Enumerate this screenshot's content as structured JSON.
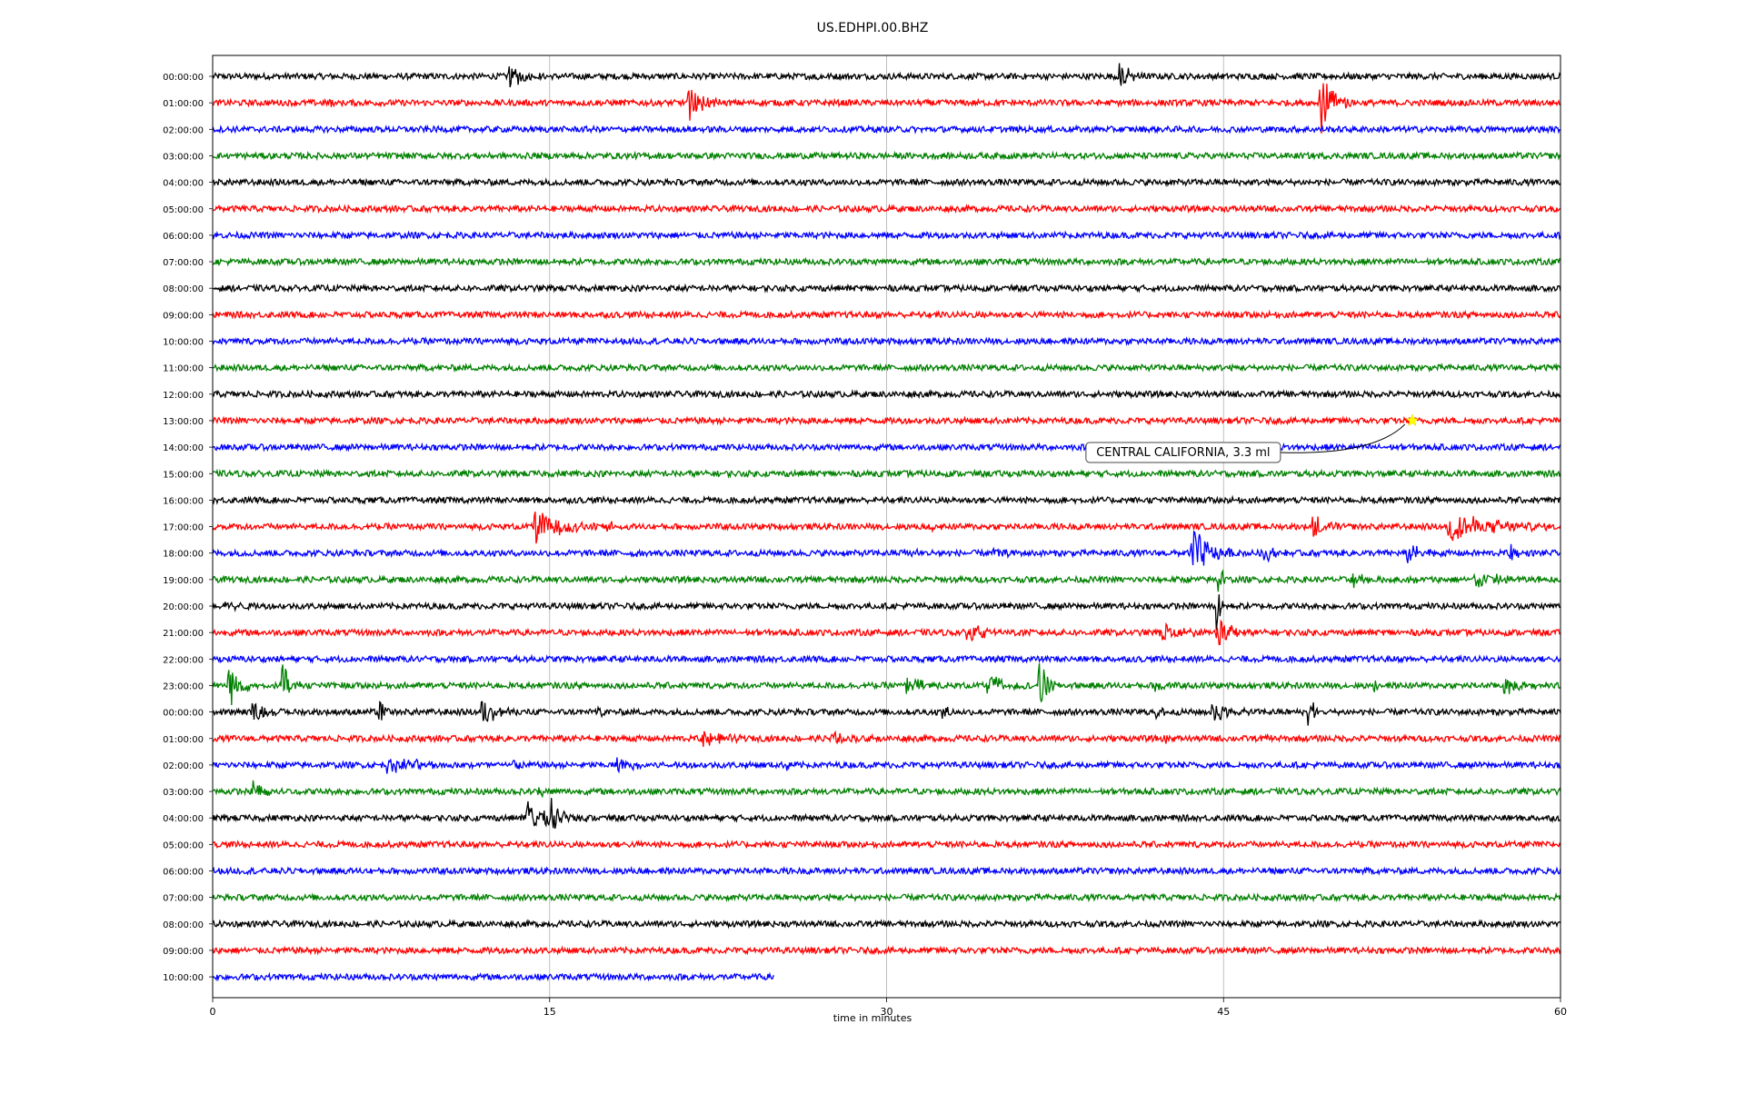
{
  "chart_data": {
    "type": "line",
    "title": "US.EDHPI.00.BHZ",
    "xlabel": "time in minutes",
    "ylabel": "",
    "xlim": [
      0,
      60
    ],
    "x_ticks": [
      0,
      15,
      30,
      45,
      60
    ],
    "x_tick_labels": [
      "0",
      "15",
      "30",
      "45",
      "60"
    ],
    "grid": {
      "x": true,
      "y": false
    },
    "colors": [
      "#000000",
      "#ff0000",
      "#0000ff",
      "#008000"
    ],
    "row_labels": [
      "00:00:00",
      "01:00:00",
      "02:00:00",
      "03:00:00",
      "04:00:00",
      "05:00:00",
      "06:00:00",
      "07:00:00",
      "08:00:00",
      "09:00:00",
      "10:00:00",
      "11:00:00",
      "12:00:00",
      "13:00:00",
      "14:00:00",
      "15:00:00",
      "16:00:00",
      "17:00:00",
      "18:00:00",
      "19:00:00",
      "20:00:00",
      "21:00:00",
      "22:00:00",
      "23:00:00",
      "00:00:00",
      "01:00:00",
      "02:00:00",
      "03:00:00",
      "04:00:00",
      "05:00:00",
      "06:00:00",
      "07:00:00",
      "08:00:00",
      "09:00:00",
      "10:00:00"
    ],
    "last_row_end_minute": 25,
    "events": [
      {
        "row": 0,
        "t": 13.2,
        "amp": 0.45,
        "dur": 1.5
      },
      {
        "row": 0,
        "t": 26.9,
        "amp": 0.25,
        "dur": 0.3
      },
      {
        "row": 0,
        "t": 40.4,
        "amp": 0.5,
        "dur": 1.2
      },
      {
        "row": 1,
        "t": 5.2,
        "amp": 0.2,
        "dur": 0.4
      },
      {
        "row": 1,
        "t": 21.2,
        "amp": 0.6,
        "dur": 1.5
      },
      {
        "row": 1,
        "t": 49.3,
        "amp": 1.3,
        "dur": 1.3
      },
      {
        "row": 1,
        "t": 50.4,
        "amp": 0.35,
        "dur": 0.4
      },
      {
        "row": 17,
        "t": 14.3,
        "amp": 0.7,
        "dur": 2.8
      },
      {
        "row": 17,
        "t": 17.5,
        "amp": 0.3,
        "dur": 0.8
      },
      {
        "row": 17,
        "t": 32.0,
        "amp": 0.25,
        "dur": 0.5
      },
      {
        "row": 17,
        "t": 49.0,
        "amp": 0.5,
        "dur": 1.2
      },
      {
        "row": 17,
        "t": 55.0,
        "amp": 0.6,
        "dur": 5.0
      },
      {
        "row": 18,
        "t": 18.7,
        "amp": 0.2,
        "dur": 0.5
      },
      {
        "row": 18,
        "t": 30.7,
        "amp": 0.25,
        "dur": 2.0
      },
      {
        "row": 18,
        "t": 34.8,
        "amp": 0.2,
        "dur": 1.0
      },
      {
        "row": 18,
        "t": 43.6,
        "amp": 1.05,
        "dur": 1.8
      },
      {
        "row": 18,
        "t": 46.8,
        "amp": 0.4,
        "dur": 1.0
      },
      {
        "row": 18,
        "t": 53.2,
        "amp": 0.4,
        "dur": 1.5
      },
      {
        "row": 18,
        "t": 57.8,
        "amp": 0.35,
        "dur": 0.6
      },
      {
        "row": 19,
        "t": 44.8,
        "amp": 1.2,
        "dur": 0.3
      },
      {
        "row": 19,
        "t": 50.7,
        "amp": 0.4,
        "dur": 1.0
      },
      {
        "row": 19,
        "t": 53.0,
        "amp": 0.2,
        "dur": 1.2
      },
      {
        "row": 19,
        "t": 56.2,
        "amp": 0.3,
        "dur": 3.5
      },
      {
        "row": 20,
        "t": 0.6,
        "amp": 0.4,
        "dur": 1.0
      },
      {
        "row": 20,
        "t": 44.7,
        "amp": 1.2,
        "dur": 0.3
      },
      {
        "row": 21,
        "t": 33.6,
        "amp": 0.3,
        "dur": 2.7
      },
      {
        "row": 21,
        "t": 42.2,
        "amp": 0.4,
        "dur": 2.2
      },
      {
        "row": 21,
        "t": 44.7,
        "amp": 0.7,
        "dur": 1.4
      },
      {
        "row": 23,
        "t": 0.7,
        "amp": 0.9,
        "dur": 1.2
      },
      {
        "row": 23,
        "t": 3.1,
        "amp": 0.8,
        "dur": 1.0
      },
      {
        "row": 23,
        "t": 5.4,
        "amp": 0.25,
        "dur": 0.4
      },
      {
        "row": 23,
        "t": 30.9,
        "amp": 0.3,
        "dur": 2.0
      },
      {
        "row": 23,
        "t": 34.5,
        "amp": 0.5,
        "dur": 1.8
      },
      {
        "row": 23,
        "t": 36.8,
        "amp": 1.2,
        "dur": 0.7
      },
      {
        "row": 23,
        "t": 42.0,
        "amp": 0.3,
        "dur": 0.7
      },
      {
        "row": 23,
        "t": 51.6,
        "amp": 0.3,
        "dur": 0.6
      },
      {
        "row": 23,
        "t": 57.5,
        "amp": 0.3,
        "dur": 2.2
      },
      {
        "row": 24,
        "t": 1.8,
        "amp": 0.3,
        "dur": 1.5
      },
      {
        "row": 24,
        "t": 7.4,
        "amp": 0.5,
        "dur": 0.6
      },
      {
        "row": 24,
        "t": 12.0,
        "amp": 0.45,
        "dur": 1.8
      },
      {
        "row": 24,
        "t": 17.0,
        "amp": 0.25,
        "dur": 0.6
      },
      {
        "row": 24,
        "t": 32.5,
        "amp": 0.25,
        "dur": 0.8
      },
      {
        "row": 24,
        "t": 42.0,
        "amp": 0.3,
        "dur": 0.6
      },
      {
        "row": 24,
        "t": 44.5,
        "amp": 0.4,
        "dur": 1.5
      },
      {
        "row": 24,
        "t": 48.8,
        "amp": 0.65,
        "dur": 0.8
      },
      {
        "row": 25,
        "t": 21.8,
        "amp": 0.35,
        "dur": 1.8
      },
      {
        "row": 25,
        "t": 27.5,
        "amp": 0.25,
        "dur": 1.5
      },
      {
        "row": 25,
        "t": 29.3,
        "amp": 0.2,
        "dur": 0.4
      },
      {
        "row": 25,
        "t": 42.3,
        "amp": 0.2,
        "dur": 0.5
      },
      {
        "row": 25,
        "t": 47.0,
        "amp": 0.2,
        "dur": 0.4
      },
      {
        "row": 26,
        "t": 7.8,
        "amp": 0.25,
        "dur": 5.0
      },
      {
        "row": 26,
        "t": 13.4,
        "amp": 0.2,
        "dur": 0.6
      },
      {
        "row": 26,
        "t": 18.0,
        "amp": 0.25,
        "dur": 2.5
      },
      {
        "row": 26,
        "t": 25.6,
        "amp": 0.2,
        "dur": 0.4
      },
      {
        "row": 27,
        "t": 1.8,
        "amp": 0.4,
        "dur": 2.0
      },
      {
        "row": 27,
        "t": 14.5,
        "amp": 0.2,
        "dur": 0.7
      },
      {
        "row": 28,
        "t": 14.0,
        "amp": 0.7,
        "dur": 2.8
      },
      {
        "row": 28,
        "t": 15.1,
        "amp": 0.7,
        "dur": 0.5
      }
    ],
    "annotations": [
      {
        "text": "CENTRAL CALIFORNIA, 3.3 ml",
        "row": 13,
        "t": 53.4,
        "marker": "star",
        "marker_color": "#ffff00"
      }
    ]
  }
}
